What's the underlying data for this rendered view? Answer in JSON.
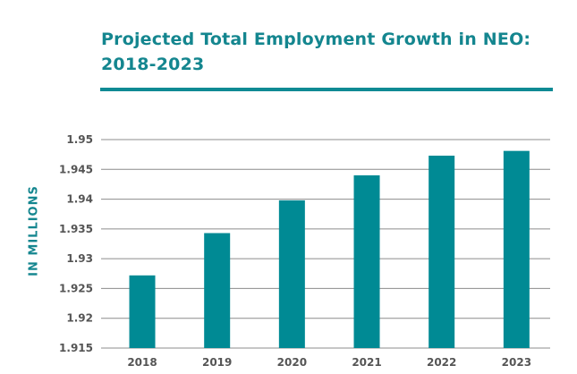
{
  "chart_data": {
    "type": "bar",
    "title": "Projected Total Employment Growth in NEO: 2018-2023",
    "title_lines": [
      "Projected Total Employment Growth in NEO:",
      "2018-2023"
    ],
    "xlabel": "",
    "ylabel": "IN MILLIONS",
    "categories": [
      "2018",
      "2019",
      "2020",
      "2021",
      "2022",
      "2023"
    ],
    "values": [
      1.9272,
      1.9343,
      1.9398,
      1.944,
      1.9473,
      1.9481
    ],
    "ylim": [
      1.915,
      1.95
    ],
    "yticks": [
      "1.915",
      "1.92",
      "1.925",
      "1.93",
      "1.935",
      "1.94",
      "1.945",
      "1.95"
    ],
    "grid": true,
    "legend": "none",
    "colors": {
      "bar": "#008a94",
      "title": "#14868f",
      "grid": "#8c8c8c"
    }
  }
}
